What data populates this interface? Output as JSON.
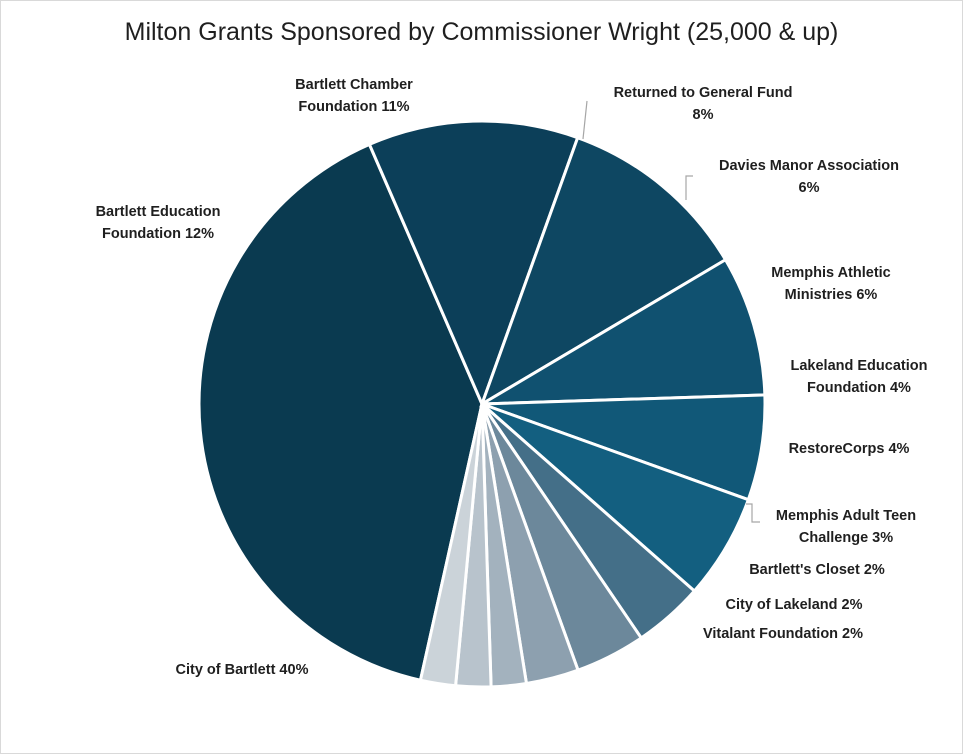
{
  "chart_data": {
    "type": "pie",
    "title": "Milton Grants Sponsored by Commissioner Wright (25,000 & up)",
    "slices": [
      {
        "name": "City of Bartlett",
        "value": 40,
        "label": [
          "City of Bartlett  40%"
        ],
        "color": "#0a3a50"
      },
      {
        "name": "Bartlett Education Foundation",
        "value": 12,
        "label": [
          "Bartlett Education",
          "Foundation 12%"
        ],
        "color": "#0c3f59"
      },
      {
        "name": "Bartlett Chamber Foundation",
        "value": 11,
        "label": [
          "Bartlett Chamber",
          "Foundation 11%"
        ],
        "color": "#0e4762"
      },
      {
        "name": "Returned to General Fund",
        "value": 8,
        "label": [
          "Returned to General Fund",
          "8%"
        ],
        "color": "#105170"
      },
      {
        "name": "Davies Manor Association",
        "value": 6,
        "label": [
          "Davies Manor Association",
          "6%"
        ],
        "color": "#115878"
      },
      {
        "name": "Memphis Athletic Ministries",
        "value": 6,
        "label": [
          "Memphis Athletic",
          "Ministries 6%"
        ],
        "color": "#135f80"
      },
      {
        "name": "Lakeland Education Foundation",
        "value": 4,
        "label": [
          "Lakeland Education",
          "Foundation 4%"
        ],
        "color": "#446f88"
      },
      {
        "name": "RestoreCorps",
        "value": 4,
        "label": [
          "RestoreCorps 4%"
        ],
        "color": "#6c889b"
      },
      {
        "name": "Memphis Adult Teen Challenge",
        "value": 3,
        "label": [
          "Memphis Adult Teen",
          "Challenge 3%"
        ],
        "color": "#8da0af"
      },
      {
        "name": "Bartlett's Closet",
        "value": 2,
        "label": [
          "Bartlett's Closet 2%"
        ],
        "color": "#a3b2be"
      },
      {
        "name": "City of Lakeland",
        "value": 2,
        "label": [
          "City of Lakeland 2%"
        ],
        "color": "#b8c3cc"
      },
      {
        "name": "Vitalant Foundation",
        "value": 2,
        "label": [
          "Vitalant Foundation 2%"
        ],
        "color": "#cbd3d9"
      }
    ],
    "legend": "none",
    "data_labels": "outside"
  }
}
